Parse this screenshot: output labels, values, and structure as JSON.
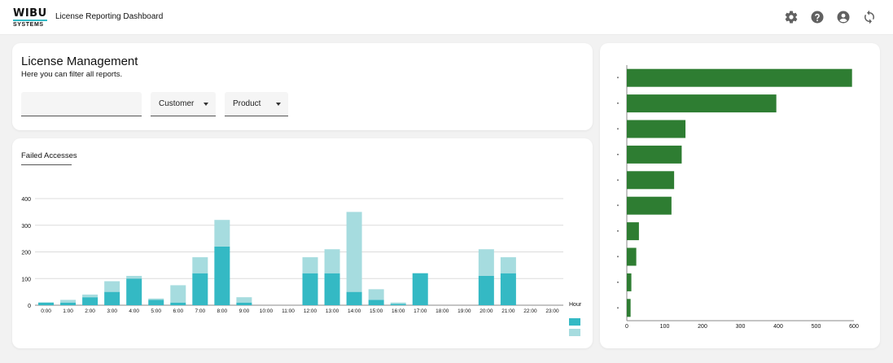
{
  "header": {
    "logo_top": "WIBU",
    "logo_bottom": "SYSTEMS",
    "title": "License Reporting Dashboard",
    "icons": [
      "settings-icon",
      "help-icon",
      "account-icon",
      "refresh-icon"
    ]
  },
  "filters": {
    "title": "License Management",
    "subtitle": "Here you can filter all reports.",
    "search_value": "",
    "customer_label": "Customer",
    "product_label": "Product"
  },
  "failed_accesses": {
    "tab_label": "Failed Accesses",
    "chart_data": {
      "type": "bar",
      "stacked": true,
      "categories": [
        "0:00",
        "1:00",
        "2:00",
        "3:00",
        "4:00",
        "5:00",
        "6:00",
        "7:00",
        "8:00",
        "9:00",
        "10:00",
        "11:00",
        "12:00",
        "13:00",
        "14:00",
        "15:00",
        "16:00",
        "17:00",
        "18:00",
        "19:00",
        "20:00",
        "21:00",
        "22:00",
        "23:00"
      ],
      "series": [
        {
          "color": "#34b9c4",
          "values": [
            10,
            10,
            30,
            50,
            100,
            20,
            10,
            120,
            220,
            10,
            0,
            0,
            120,
            120,
            50,
            20,
            5,
            120,
            0,
            0,
            110,
            120,
            0,
            0
          ]
        },
        {
          "color": "#a6dcdf",
          "values": [
            0,
            10,
            10,
            40,
            10,
            5,
            65,
            60,
            100,
            20,
            0,
            0,
            60,
            90,
            300,
            40,
            5,
            0,
            0,
            0,
            100,
            60,
            0,
            0
          ]
        }
      ],
      "xlabel": "Hour",
      "ylabel": "",
      "ylim": [
        0,
        400
      ],
      "yticks": [
        0,
        100,
        200,
        300,
        400
      ],
      "grid": true,
      "legend": "right"
    }
  },
  "ranking": {
    "chart_data": {
      "type": "bar",
      "orientation": "horizontal",
      "categories": [
        "\"",
        "\"",
        "\"",
        "\"",
        "\"",
        "\"",
        "\"",
        "\"",
        "\"",
        "\""
      ],
      "values": [
        595,
        395,
        155,
        145,
        125,
        118,
        32,
        25,
        12,
        10
      ],
      "color": "#2e7d32",
      "xlim": [
        0,
        600
      ],
      "xticks": [
        0,
        100,
        200,
        300,
        400,
        500,
        600
      ],
      "grid": false
    }
  }
}
